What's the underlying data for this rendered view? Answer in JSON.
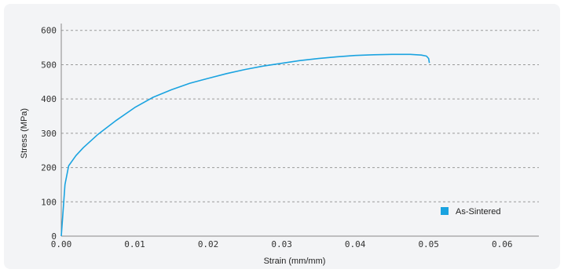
{
  "chart_data": {
    "type": "line",
    "title": "",
    "xlabel": "Strain (mm/mm)",
    "ylabel": "Stress (MPa)",
    "xlim": [
      0,
      0.065
    ],
    "ylim": [
      0,
      620
    ],
    "x_ticks": [
      "0.00",
      "0.01",
      "0.02",
      "0.03",
      "0.04",
      "0.05",
      "0.06"
    ],
    "y_ticks": [
      "0",
      "100",
      "200",
      "300",
      "400",
      "500",
      "600"
    ],
    "grid": "horizontal dashed",
    "legend_position": "bottom-right",
    "series": [
      {
        "name": "As-Sintered",
        "color": "#1aa3e0",
        "points": [
          [
            0.0,
            0
          ],
          [
            0.0002,
            60
          ],
          [
            0.0005,
            150
          ],
          [
            0.001,
            205
          ],
          [
            0.002,
            235
          ],
          [
            0.003,
            258
          ],
          [
            0.005,
            297
          ],
          [
            0.0075,
            338
          ],
          [
            0.01,
            375
          ],
          [
            0.0125,
            405
          ],
          [
            0.015,
            427
          ],
          [
            0.0175,
            446
          ],
          [
            0.02,
            460
          ],
          [
            0.0225,
            474
          ],
          [
            0.025,
            486
          ],
          [
            0.0275,
            496
          ],
          [
            0.03,
            504
          ],
          [
            0.0325,
            512
          ],
          [
            0.035,
            518
          ],
          [
            0.0375,
            523
          ],
          [
            0.04,
            527
          ],
          [
            0.0425,
            529
          ],
          [
            0.045,
            530
          ],
          [
            0.0475,
            530
          ],
          [
            0.049,
            528
          ],
          [
            0.0497,
            525
          ],
          [
            0.05,
            518
          ],
          [
            0.0501,
            505
          ]
        ]
      }
    ]
  }
}
